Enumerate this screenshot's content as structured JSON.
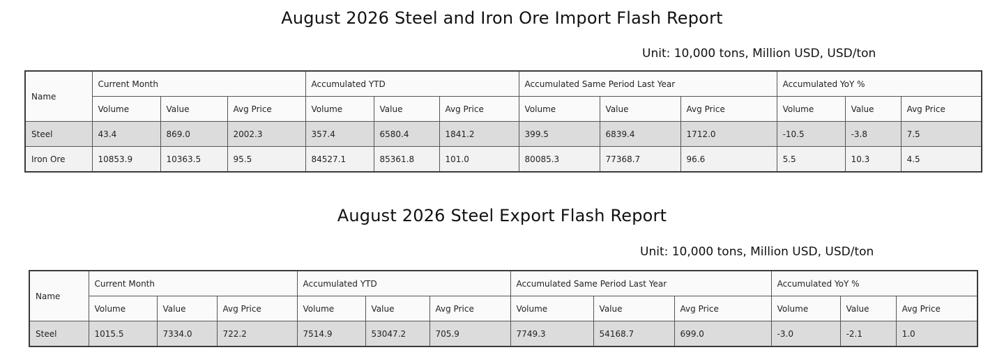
{
  "import_report": {
    "title": "August 2026 Steel and Iron Ore Import Flash Report",
    "unit": "Unit: 10,000 tons, Million USD, USD/ton",
    "name_header": "Name",
    "groups": [
      "Current Month",
      "Accumulated YTD",
      "Accumulated Same Period Last Year",
      "Accumulated YoY %"
    ],
    "subheaders": [
      "Volume",
      "Value",
      "Avg Price"
    ],
    "rows": [
      {
        "name": "Steel",
        "cells": [
          "43.4",
          "869.0",
          "2002.3",
          "357.4",
          "6580.4",
          "1841.2",
          "399.5",
          "6839.4",
          "1712.0",
          "-10.5",
          "-3.8",
          "7.5"
        ]
      },
      {
        "name": "Iron Ore",
        "cells": [
          "10853.9",
          "10363.5",
          "95.5",
          "84527.1",
          "85361.8",
          "101.0",
          "80085.3",
          "77368.7",
          "96.6",
          "5.5",
          "10.3",
          "4.5"
        ]
      }
    ]
  },
  "export_report": {
    "title": "August 2026 Steel Export Flash Report",
    "unit": "Unit: 10,000 tons, Million USD, USD/ton",
    "name_header": "Name",
    "groups": [
      "Current Month",
      "Accumulated YTD",
      "Accumulated Same Period Last Year",
      "Accumulated YoY %"
    ],
    "subheaders": [
      "Volume",
      "Value",
      "Avg Price"
    ],
    "rows": [
      {
        "name": "Steel",
        "cells": [
          "1015.5",
          "7334.0",
          "722.2",
          "7514.9",
          "53047.2",
          "705.9",
          "7749.3",
          "54168.7",
          "699.0",
          "-3.0",
          "-2.1",
          "1.0"
        ]
      }
    ]
  }
}
